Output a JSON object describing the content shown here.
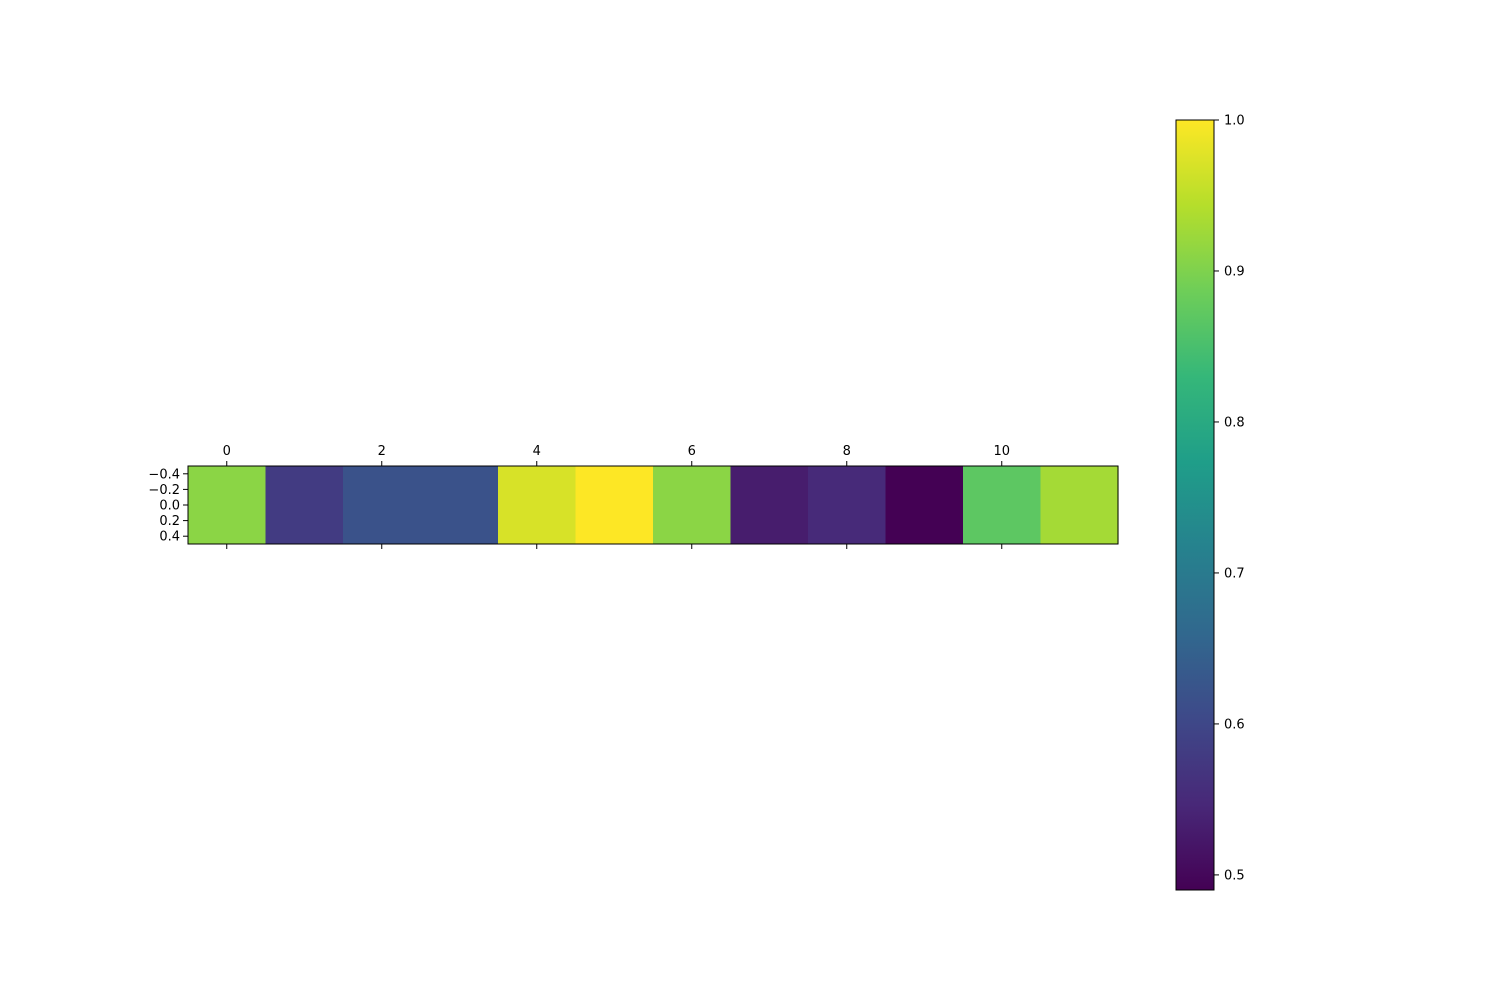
{
  "chart_data": {
    "type": "heatmap",
    "title": "",
    "xlabel": "",
    "ylabel": "",
    "x_ticks": [
      "0",
      "2",
      "4",
      "6",
      "8",
      "10"
    ],
    "x_tick_values": [
      0,
      2,
      4,
      6,
      8,
      10
    ],
    "y_ticks": [
      "−0.4",
      "−0.2",
      "0.0",
      "0.2",
      "0.4"
    ],
    "y_tick_values": [
      -0.4,
      -0.2,
      0.0,
      0.2,
      0.4
    ],
    "xlim": [
      -0.5,
      11.5
    ],
    "ylim": [
      0.5,
      -0.5
    ],
    "rows": 1,
    "columns": 12,
    "values": [
      [
        0.91,
        0.58,
        0.62,
        0.62,
        0.97,
        1.0,
        0.91,
        0.53,
        0.55,
        0.49,
        0.87,
        0.93
      ]
    ],
    "colormap": "viridis",
    "colormap_stops": [
      "#440154",
      "#482878",
      "#3e4989",
      "#31688e",
      "#26828e",
      "#1f9e89",
      "#35b779",
      "#6ece58",
      "#b5de2b",
      "#fde725"
    ],
    "grid": false,
    "x_ticks_position": "top",
    "colorbar": {
      "position": "right",
      "min": 0.49,
      "max": 1.0,
      "ticks": [
        "0.5",
        "0.6",
        "0.7",
        "0.8",
        "0.9",
        "1.0"
      ],
      "tick_values": [
        0.5,
        0.6,
        0.7,
        0.8,
        0.9,
        1.0
      ]
    }
  }
}
